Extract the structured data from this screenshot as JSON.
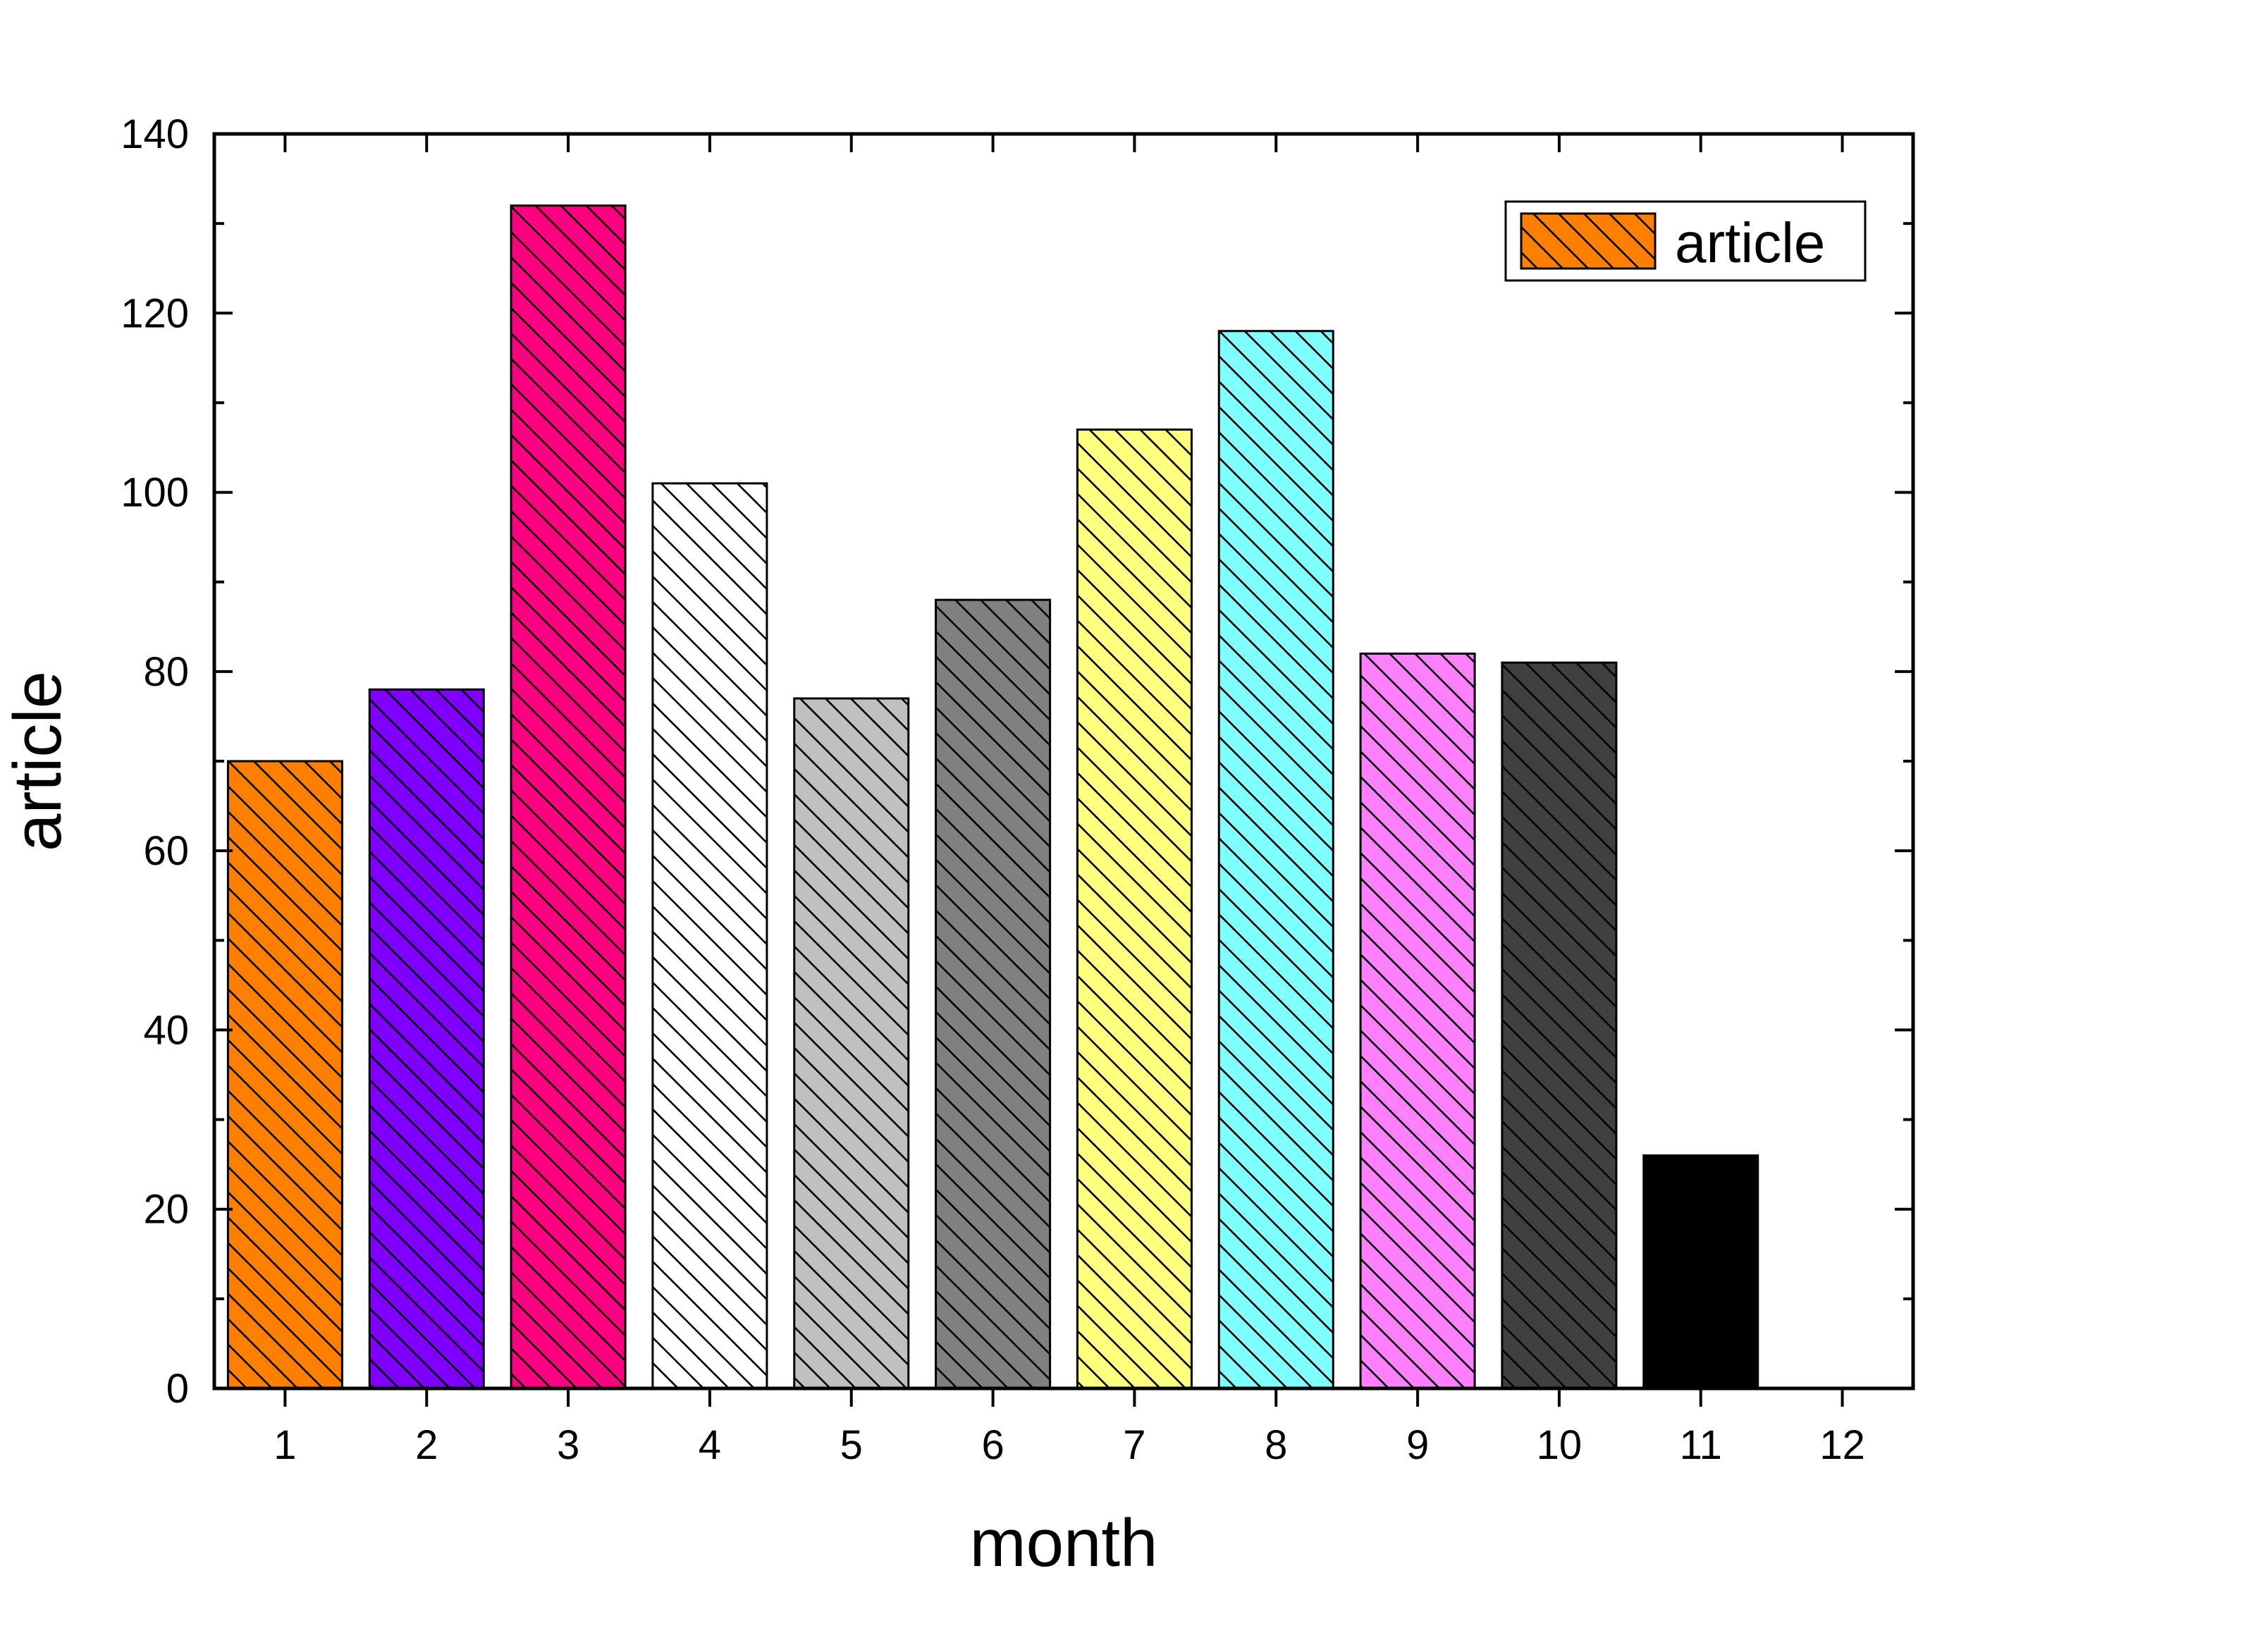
{
  "chart_data": {
    "type": "bar",
    "categories": [
      "1",
      "2",
      "3",
      "4",
      "5",
      "6",
      "7",
      "8",
      "9",
      "10",
      "11",
      "12"
    ],
    "series": [
      {
        "name": "article",
        "values": [
          70,
          78,
          132,
          101,
          77,
          88,
          107,
          118,
          82,
          81,
          26,
          0
        ]
      }
    ],
    "bar_colors": [
      "#ff8000",
      "#8000ff",
      "#ff0080",
      "#ffffff",
      "#c0c0c0",
      "#808080",
      "#ffff80",
      "#80ffff",
      "#ff80ff",
      "#404040",
      "#000000",
      "#ffffff"
    ],
    "legend_color": "#ff8000",
    "pattern": "diagonal-hatch",
    "xlabel": "month",
    "ylabel": "article",
    "ylim": [
      0,
      140
    ],
    "yticks": [
      0,
      20,
      40,
      60,
      80,
      100,
      120,
      140
    ],
    "grid": false,
    "legend_position": "top-right"
  }
}
